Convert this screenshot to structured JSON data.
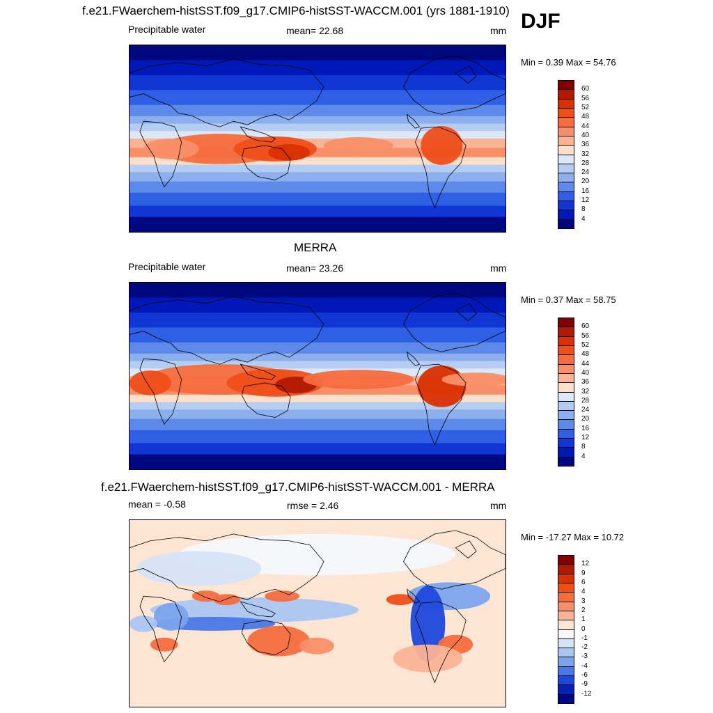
{
  "header": {
    "title": "f.e21.FWaerchem-histSST.f09_g17.CMIP6-histSST-WACCM.001 (yrs 1881-1910)",
    "season": "DJF"
  },
  "chart_data": [
    {
      "type": "heatmap",
      "title": "f.e21.FWaerchem-histSST.f09_g17.CMIP6-histSST-WACCM.001 (yrs 1881-1910)",
      "left_label": "Precipitable water",
      "center_label": "mean=  22.68",
      "right_label": "mm",
      "minmax": "Min =   0.39 Max =  54.76",
      "min": 0.39,
      "max": 54.76,
      "mean": 22.68,
      "levels": [
        "60",
        "56",
        "52",
        "48",
        "44",
        "40",
        "36",
        "32",
        "28",
        "24",
        "20",
        "16",
        "12",
        "8",
        "4"
      ],
      "colors": [
        "#800000",
        "#b01a00",
        "#d83000",
        "#ee4e1a",
        "#f56d3e",
        "#f98f68",
        "#fbb396",
        "#fde0cc",
        "#dce8f8",
        "#b5cdf3",
        "#8cb0ee",
        "#5d8ae8",
        "#2e5fe4",
        "#1037d4",
        "#0018b8",
        "#000880"
      ]
    },
    {
      "type": "heatmap",
      "title": "MERRA",
      "left_label": "Precipitable water",
      "center_label": "mean=  23.26",
      "right_label": "mm",
      "minmax": "Min =   0.37 Max =  58.75",
      "min": 0.37,
      "max": 58.75,
      "mean": 23.26,
      "levels": [
        "60",
        "56",
        "52",
        "48",
        "44",
        "40",
        "36",
        "32",
        "28",
        "24",
        "20",
        "16",
        "12",
        "8",
        "4"
      ],
      "colors": [
        "#800000",
        "#b01a00",
        "#d83000",
        "#ee4e1a",
        "#f56d3e",
        "#f98f68",
        "#fbb396",
        "#fde0cc",
        "#dce8f8",
        "#b5cdf3",
        "#8cb0ee",
        "#5d8ae8",
        "#2e5fe4",
        "#1037d4",
        "#0018b8",
        "#000880"
      ]
    },
    {
      "type": "heatmap",
      "title": "f.e21.FWaerchem-histSST.f09_g17.CMIP6-histSST-WACCM.001 - MERRA",
      "left_label": "mean =  -0.58",
      "center_label": "rmse =   2.46",
      "right_label": "mm",
      "minmax": "Min = -17.27 Max =  10.72",
      "min": -17.27,
      "max": 10.72,
      "mean": -0.58,
      "rmse": 2.46,
      "levels": [
        "12",
        "9",
        "6",
        "4",
        "3",
        "2",
        "1",
        "0",
        "-1",
        "-2",
        "-3",
        "-4",
        "-6",
        "-9",
        "-12"
      ],
      "colors": [
        "#800000",
        "#b01a00",
        "#d83000",
        "#ee4e1a",
        "#f56d3e",
        "#f98f68",
        "#fbb396",
        "#fde5d4",
        "#f6f8fc",
        "#d6e4f8",
        "#aac6f2",
        "#7ca4ec",
        "#4a78e6",
        "#1c48dc",
        "#0520b8",
        "#000880"
      ]
    }
  ]
}
